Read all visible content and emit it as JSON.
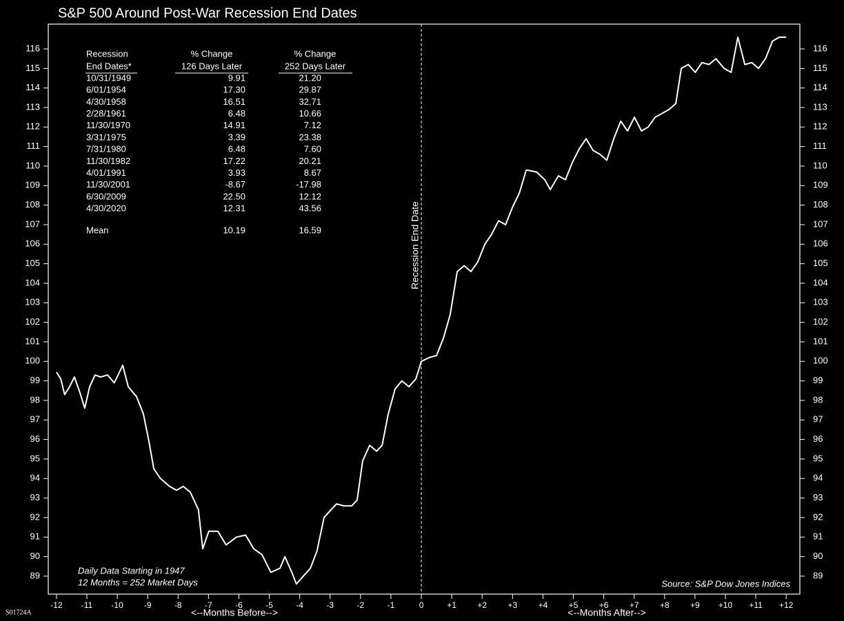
{
  "chart_data": {
    "type": "line",
    "title": "S&P 500 Around Post-War Recession End Dates",
    "x": [
      -12,
      -11.86,
      -11.73,
      -11.57,
      -11.41,
      -11.23,
      -11.07,
      -10.91,
      -10.73,
      -10.55,
      -10.32,
      -10.1,
      -9.82,
      -9.64,
      -9.37,
      -9.14,
      -8.96,
      -8.8,
      -8.58,
      -8.28,
      -8.05,
      -7.83,
      -7.6,
      -7.33,
      -7.19,
      -6.99,
      -6.69,
      -6.42,
      -6.08,
      -5.78,
      -5.51,
      -5.24,
      -4.95,
      -4.65,
      -4.49,
      -4.26,
      -4.11,
      -3.88,
      -3.65,
      -3.43,
      -3.2,
      -2.97,
      -2.79,
      -2.56,
      -2.29,
      -2.11,
      -1.93,
      -1.7,
      -1.47,
      -1.29,
      -1.09,
      -0.86,
      -0.64,
      -0.41,
      -0.18,
      0,
      0.27,
      0.5,
      0.73,
      0.95,
      1.18,
      1.41,
      1.63,
      1.86,
      2.09,
      2.31,
      2.54,
      2.77,
      3.0,
      3.22,
      3.45,
      3.79,
      4.06,
      4.24,
      4.51,
      4.74,
      4.97,
      5.2,
      5.42,
      5.65,
      5.88,
      6.1,
      6.33,
      6.56,
      6.78,
      7.01,
      7.24,
      7.46,
      7.69,
      7.92,
      8.15,
      8.37,
      8.55,
      8.78,
      9.01,
      9.23,
      9.46,
      9.69,
      9.96,
      10.19,
      10.41,
      10.64,
      10.87,
      11.09,
      11.32,
      11.55,
      11.77,
      12.0
    ],
    "values": [
      99.45,
      99.1,
      98.3,
      98.7,
      99.2,
      98.4,
      97.6,
      98.7,
      99.3,
      99.2,
      99.3,
      98.9,
      99.8,
      98.7,
      98.2,
      97.3,
      95.9,
      94.5,
      94.0,
      93.6,
      93.4,
      93.6,
      93.3,
      92.4,
      90.4,
      91.3,
      91.3,
      90.6,
      91.0,
      91.1,
      90.4,
      90.1,
      89.2,
      89.4,
      90.0,
      89.2,
      88.6,
      89.0,
      89.4,
      90.3,
      92.0,
      92.4,
      92.7,
      92.6,
      92.6,
      92.9,
      94.9,
      95.7,
      95.4,
      95.7,
      97.3,
      98.6,
      99.0,
      98.7,
      99.1,
      100.0,
      100.2,
      100.3,
      101.2,
      102.4,
      104.6,
      104.9,
      104.6,
      105.1,
      106.0,
      106.5,
      107.2,
      107.0,
      107.9,
      108.6,
      109.8,
      109.7,
      109.3,
      108.8,
      109.5,
      109.3,
      110.2,
      110.9,
      111.4,
      110.8,
      110.6,
      110.3,
      111.4,
      112.3,
      111.8,
      112.5,
      111.8,
      112.0,
      112.5,
      112.7,
      112.9,
      113.2,
      115.0,
      115.2,
      114.8,
      115.3,
      115.2,
      115.5,
      115.0,
      114.8,
      116.6,
      115.2,
      115.3,
      115.0,
      115.5,
      116.4,
      116.6,
      116.6
    ],
    "color": "#ffffff",
    "xlim": [
      -12.27,
      12.45
    ],
    "xticks": [
      -12,
      -11,
      -10,
      -9,
      -8,
      -7,
      -6,
      -5,
      -4,
      -3,
      -2,
      -1,
      0,
      {
        "value": 1,
        "label": "+1"
      },
      {
        "value": 2,
        "label": "+2"
      },
      {
        "value": 3,
        "label": "+3"
      },
      {
        "value": 4,
        "label": "+4"
      },
      {
        "value": 5,
        "label": "+5"
      },
      {
        "value": 6,
        "label": "+6"
      },
      {
        "value": 7,
        "label": "+7"
      },
      {
        "value": 8,
        "label": "+8"
      },
      {
        "value": 9,
        "label": "+9"
      },
      {
        "value": 10,
        "label": "+10"
      },
      {
        "value": 11,
        "label": "+11"
      },
      {
        "value": 12,
        "label": "+12"
      }
    ],
    "ylim": [
      88.08,
      117.27
    ],
    "yticks": [
      89,
      90,
      91,
      92,
      93,
      94,
      95,
      96,
      97,
      98,
      99,
      100,
      101,
      102,
      103,
      104,
      105,
      106,
      107,
      108,
      109,
      110,
      111,
      112,
      113,
      114,
      115,
      116
    ],
    "vline": {
      "x": 0,
      "label": "Recession End Date"
    },
    "xlabel_before": "<--Months Before-->",
    "xlabel_after": "<--Months After-->",
    "notes": [
      "Daily Data Starting in 1947",
      "12 Months = 252 Market Days"
    ],
    "source": "Source: S&P Dow Jones Indices",
    "code": "S01724A"
  },
  "table": {
    "header": [
      [
        "Recession",
        "End Dates*"
      ],
      [
        "% Change",
        "126 Days Later"
      ],
      [
        "% Change",
        "252 Days Later"
      ]
    ],
    "rows": [
      [
        "10/31/1949",
        "9.91",
        "21.20"
      ],
      [
        "6/01/1954",
        "17.30",
        "29.87"
      ],
      [
        "4/30/1958",
        "16.51",
        "32.71"
      ],
      [
        "2/28/1961",
        "6.48",
        "10.66"
      ],
      [
        "11/30/1970",
        "14.91",
        "7.12"
      ],
      [
        "3/31/1975",
        "3.39",
        "23.38"
      ],
      [
        "7/31/1980",
        "6.48",
        "7.60"
      ],
      [
        "11/30/1982",
        "17.22",
        "20.21"
      ],
      [
        "4/01/1991",
        "3.93",
        "8.67"
      ],
      [
        "11/30/2001",
        "-8.67",
        "-17.98"
      ],
      [
        "6/30/2009",
        "22.50",
        "12.12"
      ],
      [
        "4/30/2020",
        "12.31",
        "43.56"
      ]
    ],
    "mean": [
      "Mean",
      "10.19",
      "16.59"
    ]
  }
}
